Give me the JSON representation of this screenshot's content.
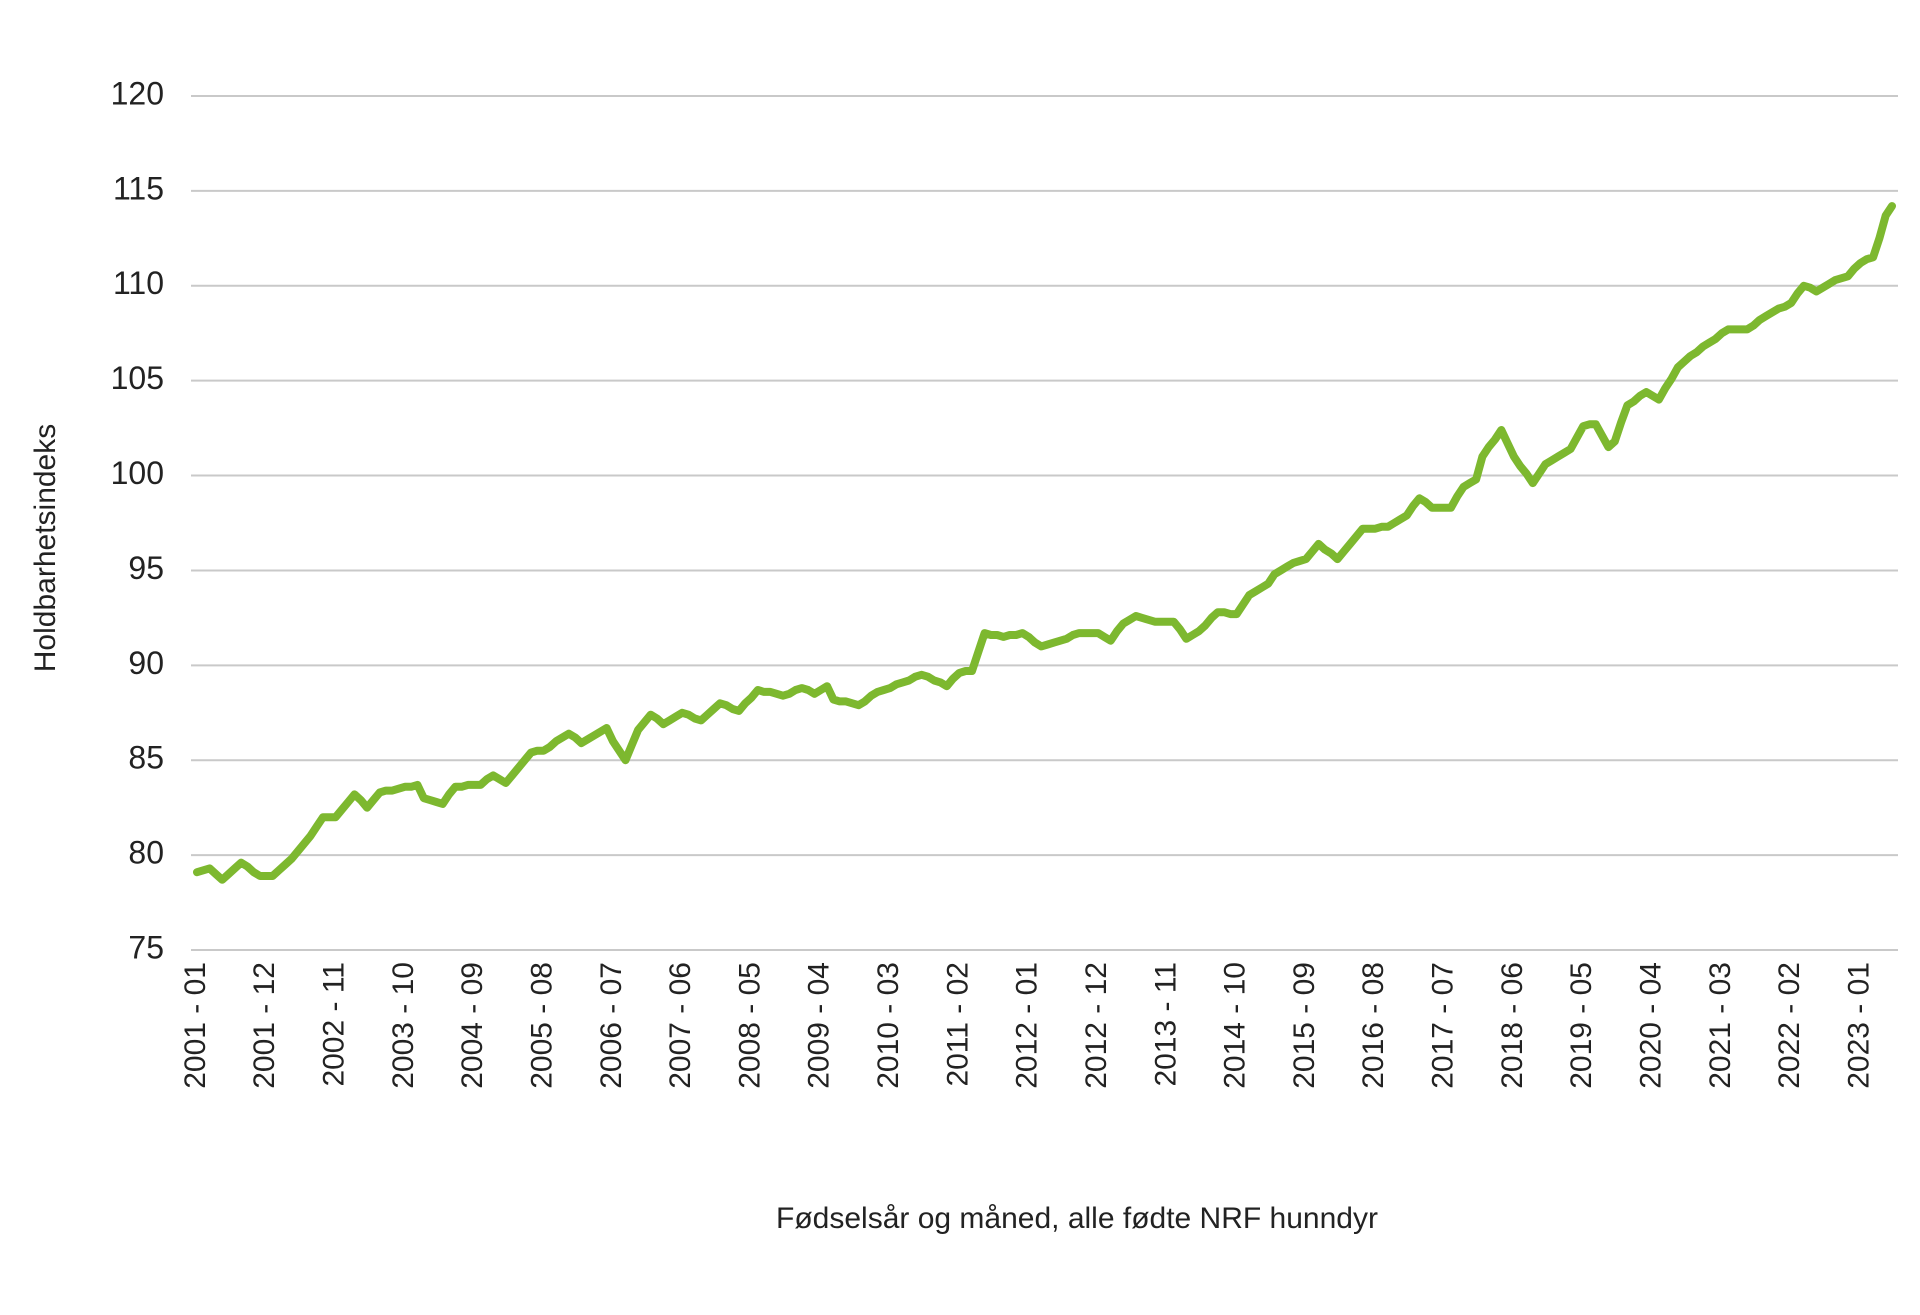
{
  "chart_data": {
    "type": "line",
    "y_label": "Holdbarhetsindeks",
    "x_label": "Fødselsår og måned, alle fødte NRF hunndyr",
    "ylim": [
      75,
      120
    ],
    "yticks": [
      75,
      80,
      85,
      90,
      95,
      100,
      105,
      110,
      115,
      120
    ],
    "grid": true,
    "categories": [
      "2001 - 01",
      null,
      null,
      null,
      null,
      null,
      null,
      null,
      null,
      null,
      null,
      "2001 - 12",
      null,
      null,
      null,
      null,
      null,
      null,
      null,
      null,
      null,
      null,
      "2002 - 11",
      null,
      null,
      null,
      null,
      null,
      null,
      null,
      null,
      null,
      null,
      "2003 - 10",
      null,
      null,
      null,
      null,
      null,
      null,
      null,
      null,
      null,
      null,
      "2004 - 09",
      null,
      null,
      null,
      null,
      null,
      null,
      null,
      null,
      null,
      null,
      "2005 - 08",
      null,
      null,
      null,
      null,
      null,
      null,
      null,
      null,
      null,
      null,
      "2006 - 07",
      null,
      null,
      null,
      null,
      null,
      null,
      null,
      null,
      null,
      null,
      "2007 - 06",
      null,
      null,
      null,
      null,
      null,
      null,
      null,
      null,
      null,
      null,
      "2008 - 05",
      null,
      null,
      null,
      null,
      null,
      null,
      null,
      null,
      null,
      null,
      "2009 - 04",
      null,
      null,
      null,
      null,
      null,
      null,
      null,
      null,
      null,
      null,
      "2010 - 03",
      null,
      null,
      null,
      null,
      null,
      null,
      null,
      null,
      null,
      null,
      "2011 - 02",
      null,
      null,
      null,
      null,
      null,
      null,
      null,
      null,
      null,
      null,
      "2012 - 01",
      null,
      null,
      null,
      null,
      null,
      null,
      null,
      null,
      null,
      null,
      "2012 - 12",
      null,
      null,
      null,
      null,
      null,
      null,
      null,
      null,
      null,
      null,
      "2013 - 11",
      null,
      null,
      null,
      null,
      null,
      null,
      null,
      null,
      null,
      null,
      "2014 - 10",
      null,
      null,
      null,
      null,
      null,
      null,
      null,
      null,
      null,
      null,
      "2015 - 09",
      null,
      null,
      null,
      null,
      null,
      null,
      null,
      null,
      null,
      null,
      "2016 - 08",
      null,
      null,
      null,
      null,
      null,
      null,
      null,
      null,
      null,
      null,
      "2017 - 07",
      null,
      null,
      null,
      null,
      null,
      null,
      null,
      null,
      null,
      null,
      "2018 - 06",
      null,
      null,
      null,
      null,
      null,
      null,
      null,
      null,
      null,
      null,
      "2019 - 05",
      null,
      null,
      null,
      null,
      null,
      null,
      null,
      null,
      null,
      null,
      "2020 - 04",
      null,
      null,
      null,
      null,
      null,
      null,
      null,
      null,
      null,
      null,
      "2021 - 03",
      null,
      null,
      null,
      null,
      null,
      null,
      null,
      null,
      null,
      null,
      "2022 - 02",
      null,
      null,
      null,
      null,
      null,
      null,
      null,
      null,
      null,
      null,
      "2023 - 01",
      null,
      null,
      null,
      null,
      null
    ],
    "series": [
      {
        "color": "#7db82f",
        "values": [
          79.1,
          79.2,
          79.3,
          79.0,
          78.7,
          79.0,
          79.3,
          79.6,
          79.4,
          79.1,
          78.9,
          78.9,
          78.9,
          79.2,
          79.5,
          79.8,
          80.2,
          80.6,
          81.0,
          81.5,
          82.0,
          82.0,
          82.0,
          82.4,
          82.8,
          83.2,
          82.9,
          82.5,
          82.9,
          83.3,
          83.4,
          83.4,
          83.5,
          83.6,
          83.6,
          83.7,
          83.0,
          82.9,
          82.8,
          82.7,
          83.2,
          83.6,
          83.6,
          83.7,
          83.7,
          83.7,
          84.0,
          84.2,
          84.0,
          83.8,
          84.2,
          84.6,
          85.0,
          85.4,
          85.5,
          85.5,
          85.7,
          86.0,
          86.2,
          86.4,
          86.2,
          85.9,
          86.1,
          86.3,
          86.5,
          86.7,
          86.0,
          85.5,
          85.0,
          85.8,
          86.6,
          87.0,
          87.4,
          87.2,
          86.9,
          87.1,
          87.3,
          87.5,
          87.4,
          87.2,
          87.1,
          87.4,
          87.7,
          88.0,
          87.9,
          87.7,
          87.6,
          88.0,
          88.3,
          88.7,
          88.6,
          88.6,
          88.5,
          88.4,
          88.5,
          88.7,
          88.8,
          88.7,
          88.5,
          88.7,
          88.9,
          88.2,
          88.1,
          88.1,
          88.0,
          87.9,
          88.1,
          88.4,
          88.6,
          88.7,
          88.8,
          89.0,
          89.1,
          89.2,
          89.4,
          89.5,
          89.4,
          89.2,
          89.1,
          88.9,
          89.3,
          89.6,
          89.7,
          89.7,
          90.7,
          91.7,
          91.6,
          91.6,
          91.5,
          91.6,
          91.6,
          91.7,
          91.5,
          91.2,
          91.0,
          91.1,
          91.2,
          91.3,
          91.4,
          91.6,
          91.7,
          91.7,
          91.7,
          91.7,
          91.5,
          91.3,
          91.8,
          92.2,
          92.4,
          92.6,
          92.5,
          92.4,
          92.3,
          92.3,
          92.3,
          92.3,
          91.9,
          91.4,
          91.6,
          91.8,
          92.1,
          92.5,
          92.8,
          92.8,
          92.7,
          92.7,
          93.2,
          93.7,
          93.9,
          94.1,
          94.3,
          94.8,
          95.0,
          95.2,
          95.4,
          95.5,
          95.6,
          96.0,
          96.4,
          96.1,
          95.9,
          95.6,
          96.0,
          96.4,
          96.8,
          97.2,
          97.2,
          97.2,
          97.3,
          97.3,
          97.5,
          97.7,
          97.9,
          98.4,
          98.8,
          98.6,
          98.3,
          98.3,
          98.3,
          98.3,
          98.9,
          99.4,
          99.6,
          99.8,
          101.0,
          101.5,
          101.9,
          102.4,
          101.7,
          101.0,
          100.5,
          100.1,
          99.6,
          100.1,
          100.6,
          100.8,
          101.0,
          101.2,
          101.4,
          102.0,
          102.6,
          102.7,
          102.7,
          102.1,
          101.5,
          101.8,
          102.8,
          103.7,
          103.9,
          104.2,
          104.4,
          104.2,
          104.0,
          104.6,
          105.1,
          105.7,
          106.0,
          106.3,
          106.5,
          106.8,
          107.0,
          107.2,
          107.5,
          107.7,
          107.7,
          107.7,
          107.7,
          107.9,
          108.2,
          108.4,
          108.6,
          108.8,
          108.9,
          109.1,
          109.6,
          110.0,
          109.9,
          109.7,
          109.9,
          110.1,
          110.3,
          110.4,
          110.5,
          110.9,
          111.2,
          111.4,
          111.5,
          112.5,
          113.7,
          114.2
        ]
      }
    ]
  }
}
